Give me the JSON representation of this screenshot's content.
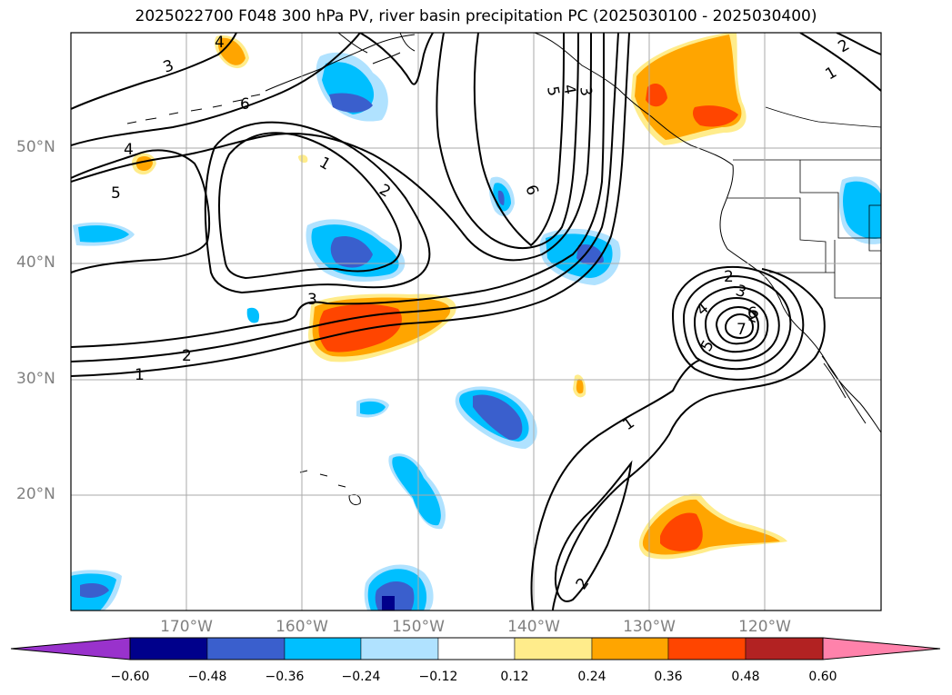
{
  "title": "2025022700 F048 300 hPa PV, river basin precipitation PC (2025030100 - 2025030400)",
  "map": {
    "lon_labels": [
      "170°W",
      "160°W",
      "150°W",
      "140°W",
      "130°W",
      "120°W"
    ],
    "lat_labels": [
      "50°N",
      "40°N",
      "30°N",
      "20°N"
    ],
    "gridlines": true,
    "contour_labels": [
      "1",
      "2",
      "3",
      "4",
      "5",
      "6",
      "1",
      "2",
      "3",
      "4",
      "5",
      "6",
      "1",
      "2",
      "1",
      "2",
      "3",
      "4",
      "2",
      "4",
      "3",
      "2",
      "5",
      "6",
      "7"
    ]
  },
  "colorbar": {
    "ticks": [
      "−0.60",
      "−0.48",
      "−0.36",
      "−0.24",
      "−0.12",
      "0.12",
      "0.24",
      "0.36",
      "0.48",
      "0.60"
    ],
    "colors": [
      "#9932cc",
      "#00008b",
      "#3a5fcd",
      "#00bfff",
      "#b0e2ff",
      "#ffffff",
      "#ffec8b",
      "#ffa500",
      "#ff4500",
      "#b22222",
      "#ff82ab"
    ]
  }
}
